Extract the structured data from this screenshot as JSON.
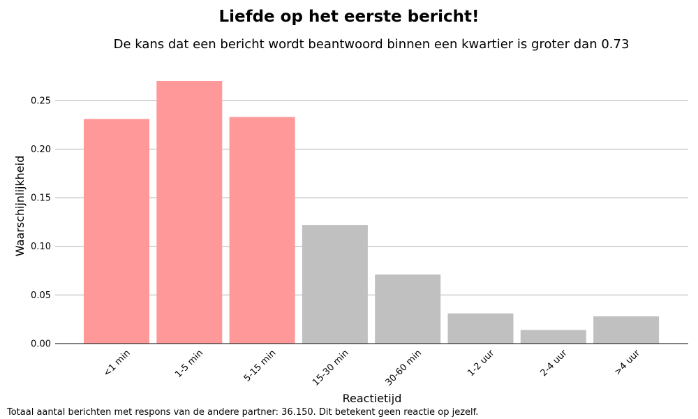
{
  "chart_data": {
    "type": "bar",
    "title": "Liefde op het eerste bericht!",
    "subtitle": "De kans dat een bericht wordt beantwoord binnen een kwartier is groter dan 0.73",
    "xlabel": "Reactietijd",
    "ylabel": "Waarschijnlijkheid",
    "categories": [
      "<1 min",
      "1-5 min",
      "5-15 min",
      "15-30 min",
      "30-60 min",
      "1-2 uur",
      "2-4 uur",
      ">4 uur"
    ],
    "values": [
      0.231,
      0.27,
      0.233,
      0.122,
      0.071,
      0.031,
      0.014,
      0.028
    ],
    "highlight": [
      true,
      true,
      true,
      false,
      false,
      false,
      false,
      false
    ],
    "ylim": [
      0,
      0.27
    ],
    "yticks": [
      0.0,
      0.05,
      0.1,
      0.15,
      0.2,
      0.25
    ],
    "ytick_labels": [
      "0.00",
      "0.05",
      "0.10",
      "0.15",
      "0.20",
      "0.25"
    ],
    "grid": "horizontal",
    "colors": {
      "highlight": "#ff9999",
      "default": "#c0c0c0",
      "grid": "#b0b0b0"
    },
    "footnote": "Totaal aantal berichten met respons van de andere partner: 36.150. Dit betekent geen reactie op jezelf."
  }
}
